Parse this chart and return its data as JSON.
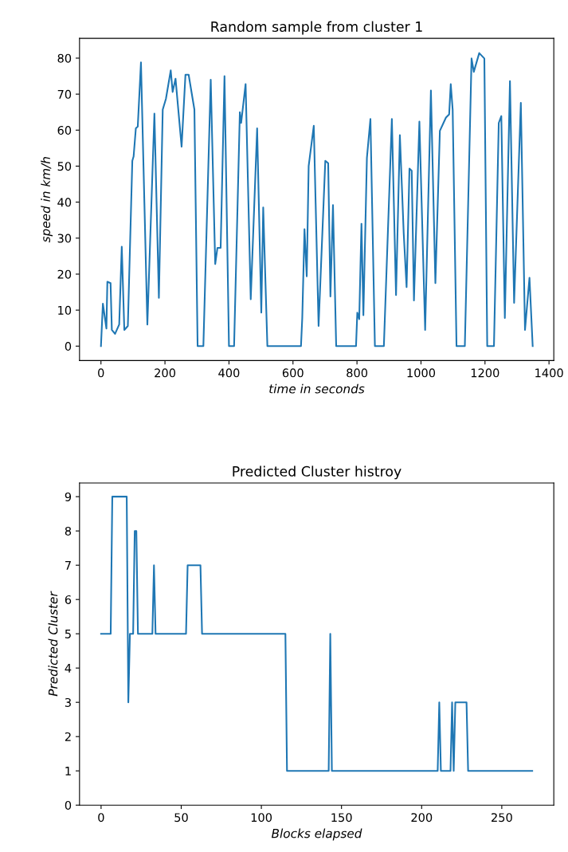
{
  "chart_data": [
    {
      "type": "line",
      "title": "Random sample from cluster 1",
      "xlabel": "time in seconds",
      "ylabel": "speed in km/h",
      "x": [
        0,
        6,
        17,
        20,
        30,
        34,
        44,
        57,
        65,
        73,
        84,
        98,
        102,
        109,
        115,
        125,
        145,
        167,
        181,
        193,
        203,
        218,
        224,
        233,
        252,
        264,
        274,
        292,
        302,
        320,
        343,
        357,
        364,
        374,
        386,
        400,
        416,
        434,
        438,
        452,
        468,
        488,
        501,
        507,
        520,
        625,
        629,
        636,
        643,
        649,
        665,
        680,
        701,
        710,
        717,
        725,
        735,
        797,
        801,
        807,
        814,
        820,
        831,
        842,
        856,
        884,
        909,
        922,
        934,
        946,
        955,
        964,
        971,
        978,
        995,
        1013,
        1031,
        1045,
        1059,
        1078,
        1088,
        1093,
        1099,
        1111,
        1137,
        1158,
        1165,
        1182,
        1198,
        1207,
        1228,
        1243,
        1251,
        1262,
        1278,
        1291,
        1312,
        1325,
        1339,
        1349
      ],
      "series": [
        {
          "color": "#1f77b4",
          "values": [
            0,
            11.8,
            4.9,
            17.9,
            17.5,
            4.5,
            3.4,
            6,
            27.6,
            4.5,
            5.6,
            51.5,
            52.7,
            60.5,
            61,
            78.8,
            6,
            64.6,
            13.4,
            65.7,
            68.7,
            76.6,
            70.6,
            74.3,
            55.4,
            75.4,
            75.4,
            65.7,
            0,
            0,
            74,
            22.8,
            27.3,
            27.3,
            75,
            0,
            0,
            65,
            62,
            72.8,
            13,
            60.5,
            9.3,
            38.5,
            0,
            0,
            7.8,
            32.5,
            19.4,
            50,
            61.2,
            5.6,
            51.5,
            50.8,
            13.8,
            39.2,
            0,
            0,
            9.3,
            7.5,
            34,
            8.6,
            52.3,
            63.1,
            0,
            0,
            63.1,
            14.2,
            58.6,
            31.4,
            16.4,
            49.3,
            48.7,
            12.7,
            62.4,
            4.5,
            71,
            17.5,
            59.8,
            63.5,
            64.4,
            72.8,
            65.7,
            0,
            0,
            79.9,
            76.2,
            81.4,
            79.9,
            0,
            0,
            62,
            63.9,
            7.8,
            73.6,
            12,
            67.6,
            4.5,
            19,
            0
          ]
        }
      ],
      "xlim": [
        -67,
        1415
      ],
      "ylim": [
        -4,
        85.5
      ],
      "xticks": [
        0,
        200,
        400,
        600,
        800,
        1000,
        1200,
        1400
      ],
      "yticks": [
        0,
        10,
        20,
        30,
        40,
        50,
        60,
        70,
        80
      ],
      "grid": false,
      "legend": false
    },
    {
      "type": "line",
      "title": "Predicted Cluster histroy",
      "xlabel": "Blocks elapsed",
      "ylabel": "Predicted Cluster",
      "x": [
        0,
        6,
        7,
        15,
        16,
        17,
        18,
        20,
        21,
        22,
        23,
        32,
        33,
        34,
        53,
        54,
        62,
        63,
        115,
        116,
        142,
        143,
        144,
        210,
        211,
        212,
        218,
        219,
        220,
        221,
        228,
        229,
        269
      ],
      "series": [
        {
          "color": "#1f77b4",
          "values": [
            5,
            5,
            9,
            9,
            9,
            3,
            5,
            5,
            8,
            8,
            5,
            5,
            7,
            5,
            5,
            7,
            7,
            5,
            5,
            1,
            1,
            5,
            1,
            1,
            3,
            1,
            1,
            3,
            1,
            3,
            3,
            1,
            1
          ]
        }
      ],
      "xlim": [
        -13.45,
        282.45
      ],
      "ylim": [
        0,
        9.4
      ],
      "xticks": [
        0,
        50,
        100,
        150,
        200,
        250
      ],
      "yticks": [
        0,
        1,
        2,
        3,
        4,
        5,
        6,
        7,
        8,
        9
      ],
      "grid": false,
      "legend": false
    }
  ]
}
